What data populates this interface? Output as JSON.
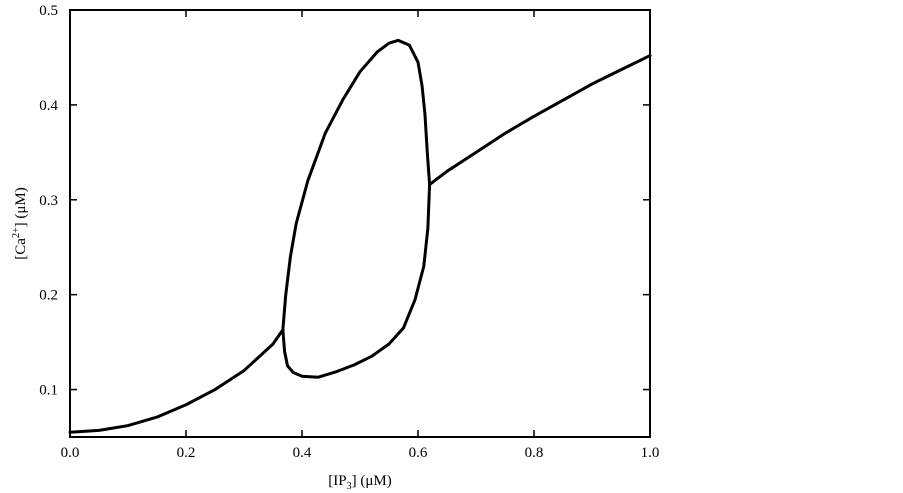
{
  "chart_data": {
    "type": "line",
    "xlabel": [
      "[IP",
      "3",
      "] (μM)"
    ],
    "ylabel": [
      "[Ca",
      "2+",
      "] (μM)"
    ],
    "xlim": [
      0,
      1
    ],
    "ylim": [
      0.05,
      0.5
    ],
    "xticks": [
      {
        "value": 0,
        "label": "0.0"
      },
      0.2,
      0.4,
      0.6,
      0.8,
      {
        "value": 1,
        "label": "1.0"
      }
    ],
    "yticks": [
      0.1,
      0.2,
      0.3,
      0.4,
      0.5
    ],
    "color": "#000000",
    "series": [
      {
        "x": [
          0,
          0.05,
          0.1,
          0.15,
          0.2,
          0.25,
          0.3,
          0.35,
          0.367
        ],
        "values": [
          0.055,
          0.057,
          0.062,
          0.071,
          0.084,
          0.1,
          0.12,
          0.148,
          0.163
        ]
      },
      {
        "x": [
          0.367,
          0.372,
          0.38,
          0.39,
          0.41,
          0.44,
          0.47,
          0.5,
          0.53,
          0.55,
          0.566,
          0.585,
          0.6,
          0.607,
          0.612,
          0.616,
          0.62,
          0.617,
          0.61,
          0.595,
          0.575,
          0.55,
          0.52,
          0.49,
          0.46,
          0.428,
          0.4,
          0.385,
          0.375,
          0.37,
          0.367
        ],
        "values": [
          0.163,
          0.2,
          0.24,
          0.275,
          0.32,
          0.37,
          0.405,
          0.435,
          0.456,
          0.465,
          0.468,
          0.463,
          0.445,
          0.42,
          0.39,
          0.35,
          0.316,
          0.27,
          0.23,
          0.195,
          0.165,
          0.148,
          0.135,
          0.126,
          0.119,
          0.113,
          0.114,
          0.118,
          0.125,
          0.14,
          0.163
        ]
      },
      {
        "x": [
          0.62,
          0.65,
          0.7,
          0.75,
          0.8,
          0.85,
          0.9,
          0.95,
          1.0
        ],
        "values": [
          0.316,
          0.33,
          0.35,
          0.37,
          0.388,
          0.405,
          0.422,
          0.437,
          0.452
        ]
      }
    ]
  }
}
